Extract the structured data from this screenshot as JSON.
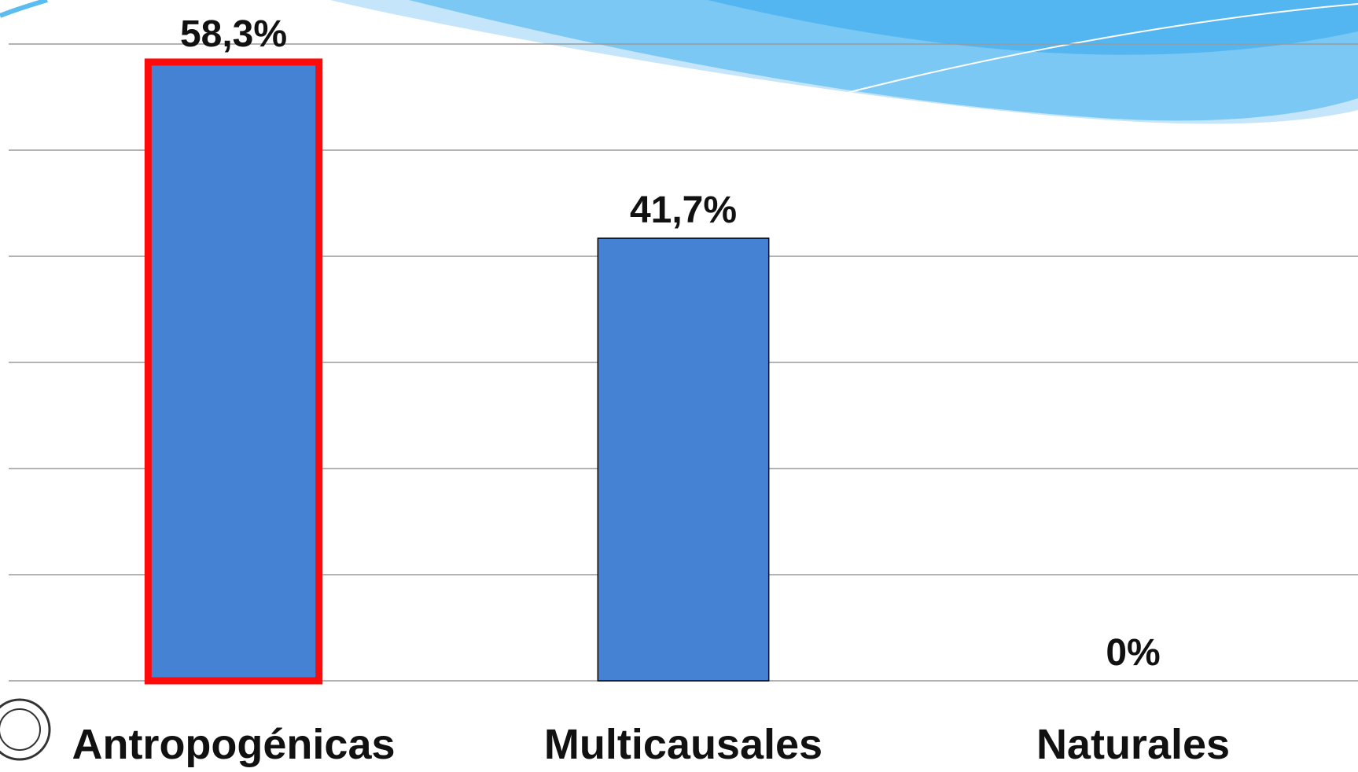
{
  "chart_data": {
    "type": "bar",
    "categories": [
      "Antropogénicas",
      "Multicausales",
      "Naturales"
    ],
    "values": [
      58.3,
      41.7,
      0
    ],
    "value_labels": [
      "58,3%",
      "41,7%",
      "0%"
    ],
    "color": "#4682d4",
    "edge_colors": [
      "#ff0a0a",
      "#000000",
      "#000000"
    ],
    "ylim": [
      0,
      60
    ],
    "yticks": [
      0,
      10,
      20,
      30,
      40,
      50,
      60
    ],
    "grid": true
  }
}
